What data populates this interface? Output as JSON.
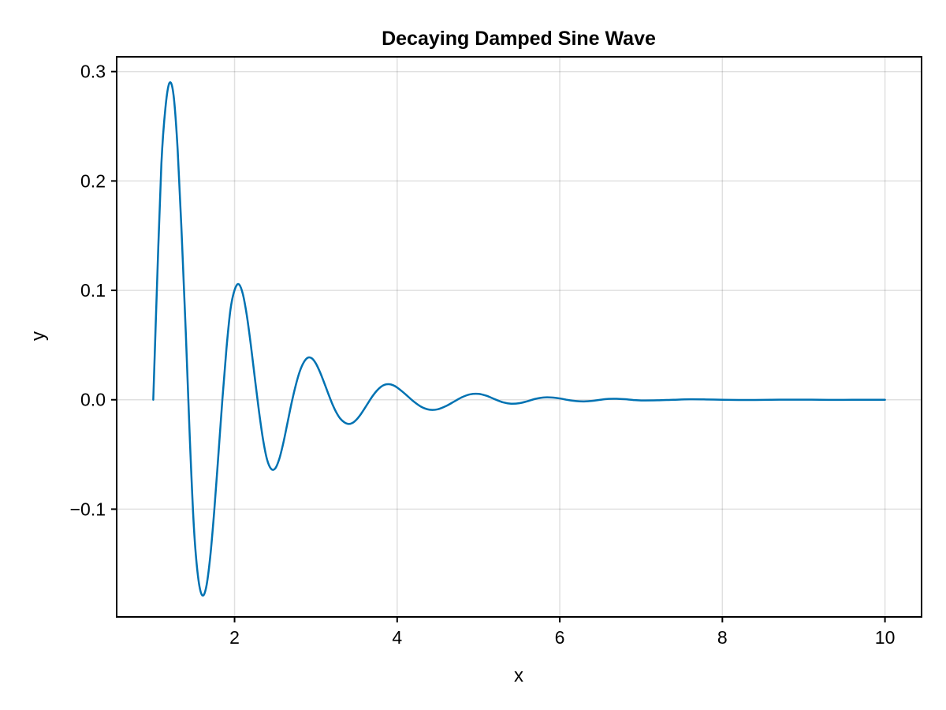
{
  "chart_data": {
    "type": "line",
    "title": "Decaying Damped Sine Wave",
    "xlabel": "x",
    "ylabel": "y",
    "xlim": [
      0.55,
      10.45
    ],
    "ylim": [
      -0.1985,
      0.3135
    ],
    "xticks": [
      2,
      4,
      6,
      8,
      10
    ],
    "xtick_labels": [
      "2",
      "4",
      "6",
      "8",
      "10"
    ],
    "yticks": [
      -0.1,
      0.0,
      0.1,
      0.2,
      0.3
    ],
    "ytick_labels": [
      "−0.1",
      "0.0",
      "0.1",
      "0.2",
      "0.3"
    ],
    "grid": true,
    "series": [
      {
        "color": "#0072b2",
        "x": [
          1.0,
          1.05,
          1.1,
          1.15,
          1.2,
          1.25,
          1.3,
          1.35,
          1.4,
          1.45,
          1.5,
          1.55,
          1.6,
          1.65,
          1.7,
          1.75,
          1.8,
          1.85,
          1.9,
          1.95,
          2.0,
          2.05,
          2.1,
          2.15,
          2.2,
          2.25,
          2.3,
          2.35,
          2.4,
          2.45,
          2.5,
          2.55,
          2.6,
          2.65,
          2.7,
          2.75,
          2.8,
          2.85,
          2.9,
          2.95,
          3.0,
          3.05,
          3.1,
          3.15,
          3.2,
          3.25,
          3.3,
          3.35,
          3.4,
          3.45,
          3.5,
          3.55,
          3.6,
          3.65,
          3.7,
          3.75,
          3.8,
          3.85,
          3.9,
          3.95,
          4.0,
          4.1,
          4.2,
          4.3,
          4.4,
          4.5,
          4.6,
          4.7,
          4.8,
          4.9,
          5.0,
          5.1,
          5.2,
          5.3,
          5.4,
          5.5,
          5.6,
          5.7,
          5.8,
          5.9,
          6.0,
          6.1,
          6.2,
          6.3,
          6.4,
          6.5,
          6.6,
          6.7,
          6.8,
          6.9,
          7.0,
          7.2,
          7.4,
          7.6,
          7.8,
          8.0,
          8.2,
          8.4,
          8.6,
          8.8,
          9.0,
          9.2,
          9.4,
          9.6,
          9.8,
          10.0
        ],
        "y": [
          0.0,
          0.1134,
          0.2158,
          0.2671,
          0.2897,
          0.2782,
          0.2286,
          0.1507,
          0.0618,
          -0.0359,
          -0.1168,
          -0.1612,
          -0.1786,
          -0.1717,
          -0.1441,
          -0.1017,
          -0.0515,
          0.0,
          0.0465,
          0.0826,
          0.1002,
          0.1057,
          0.0972,
          0.0775,
          0.0502,
          0.0195,
          -0.0103,
          -0.0362,
          -0.0547,
          -0.0632,
          -0.0628,
          -0.0541,
          -0.0394,
          -0.0215,
          -0.0034,
          0.0125,
          0.0255,
          0.0341,
          0.0384,
          0.0379,
          0.0332,
          0.0254,
          0.016,
          0.0061,
          -0.0034,
          -0.0113,
          -0.0172,
          -0.0206,
          -0.0221,
          -0.0212,
          -0.0181,
          -0.0135,
          -0.0079,
          -0.002,
          0.0036,
          0.0083,
          0.0118,
          0.0138,
          0.0142,
          0.0133,
          0.0112,
          0.0052,
          -0.0014,
          -0.0066,
          -0.0091,
          -0.0087,
          -0.0058,
          -0.0017,
          0.0024,
          0.005,
          0.0054,
          0.0036,
          0.0005,
          -0.0023,
          -0.0036,
          -0.0032,
          -0.0014,
          0.0008,
          0.0021,
          0.0021,
          0.0012,
          -0.0002,
          -0.0012,
          -0.0015,
          -0.001,
          0.0,
          0.0008,
          0.0009,
          0.0005,
          -0.0002,
          -0.0006,
          -0.0005,
          0.0,
          0.0004,
          0.0003,
          0.0,
          -0.0002,
          -0.0002,
          0.0,
          0.0001,
          0.0001,
          0.0,
          -0.0001,
          0.0,
          0.0,
          0.0
        ]
      }
    ]
  }
}
